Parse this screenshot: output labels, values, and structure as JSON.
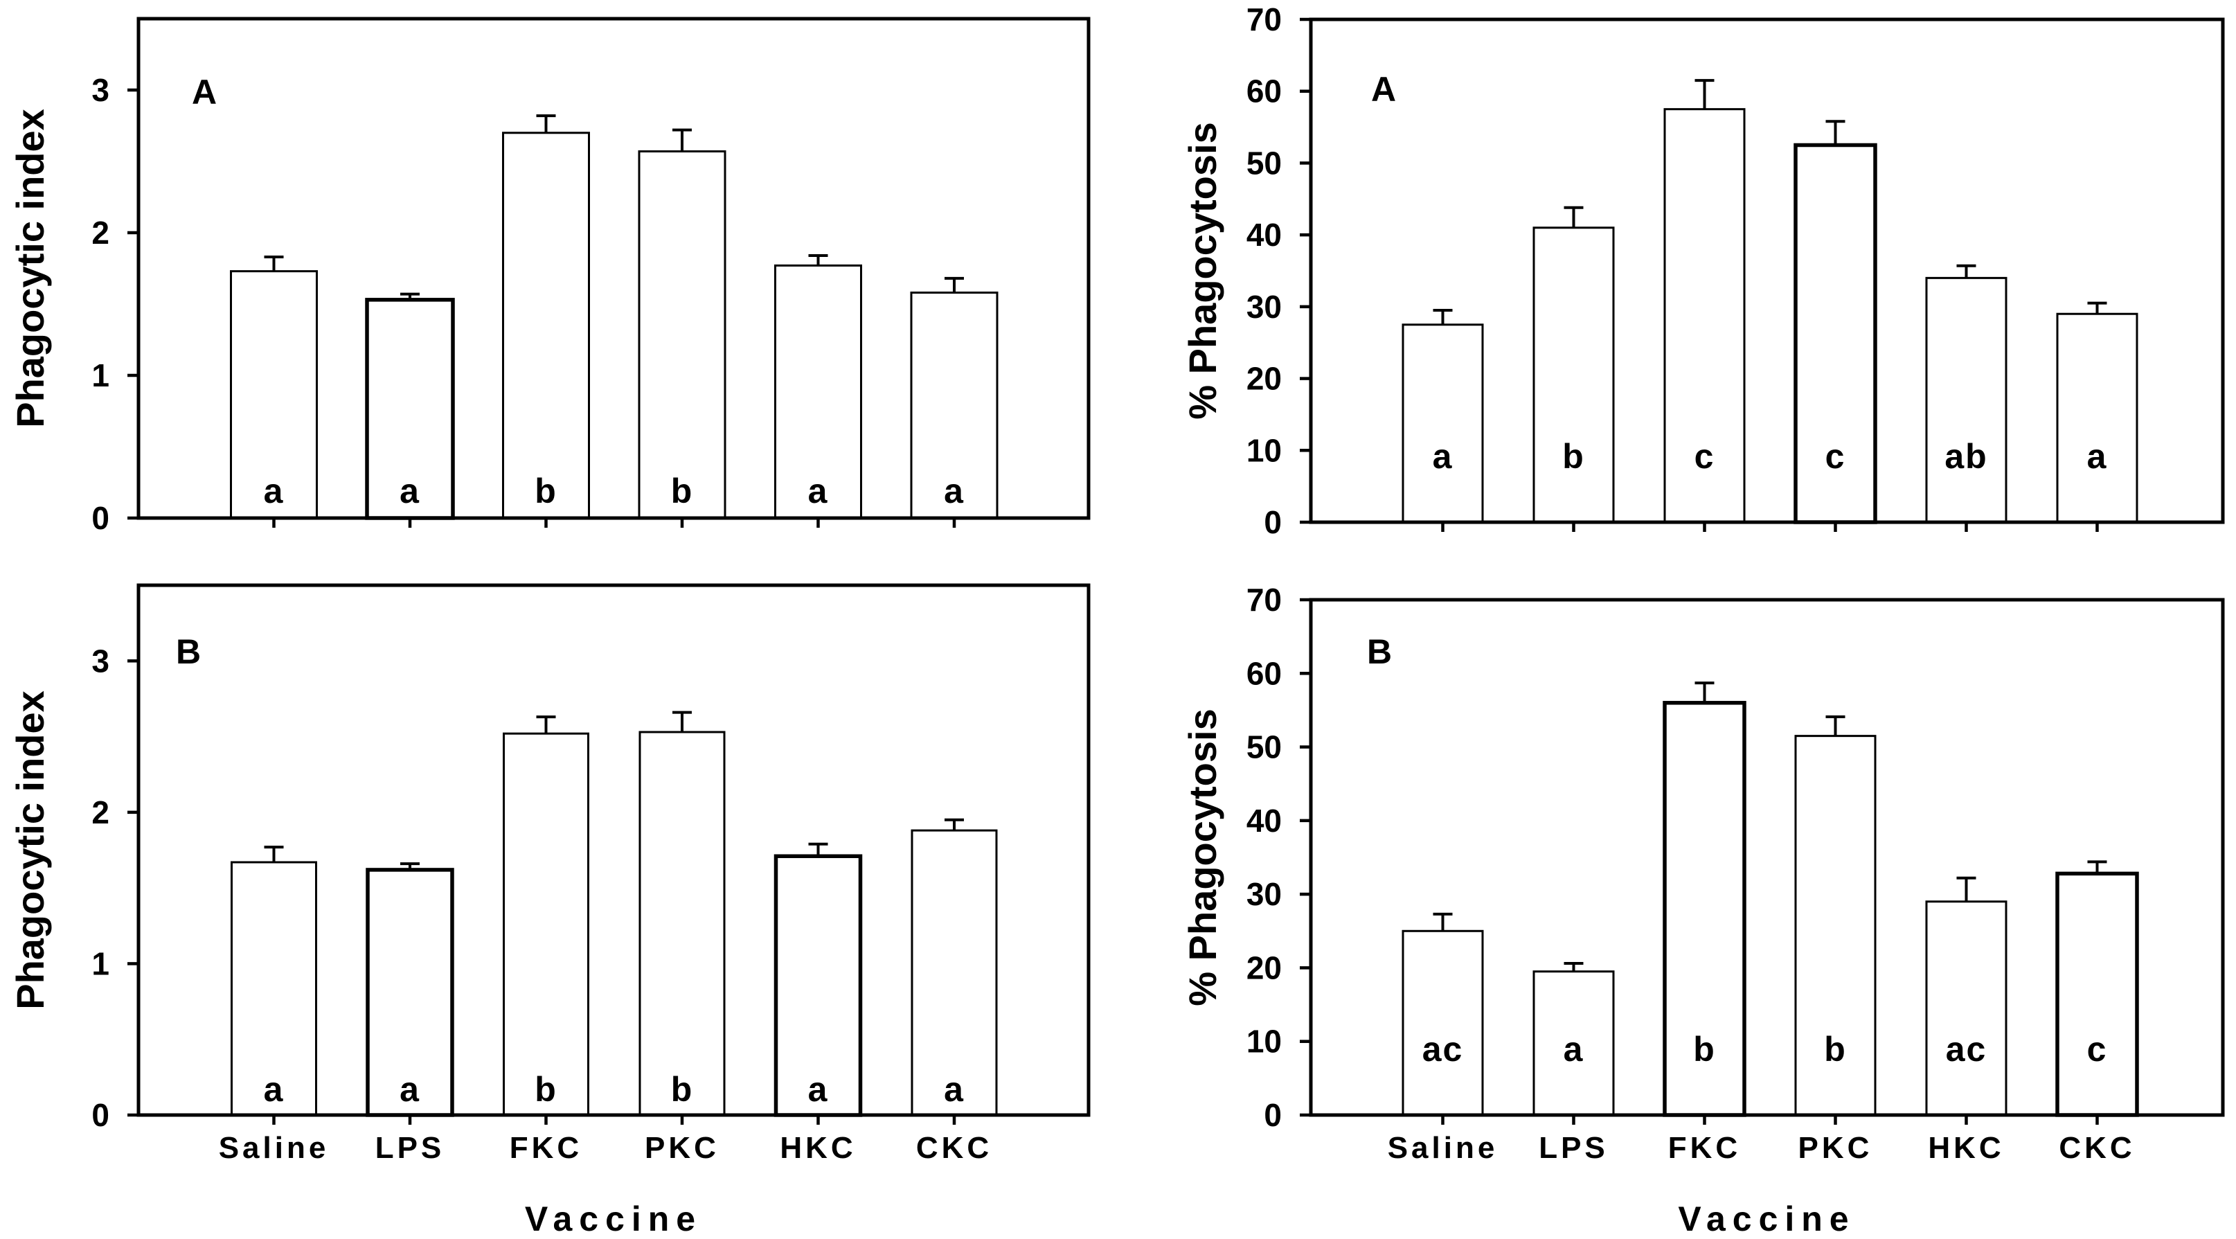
{
  "background_color": "#ffffff",
  "ink_color": "#000000",
  "xlabel": "Vaccine",
  "groups": [
    "Saline",
    "LPS",
    "FKC",
    "PKC",
    "HKC",
    "CKC"
  ],
  "chart_data": [
    {
      "id": "panel-top-left",
      "type": "bar",
      "panel_label": "A",
      "ylabel": "Phagocytic index",
      "xlabel": "Vaccine",
      "ylim": [
        0,
        3.5
      ],
      "yticks": [
        0,
        1,
        2,
        3
      ],
      "categories": [
        "Saline",
        "LPS",
        "FKC",
        "PKC",
        "HKC",
        "CKC"
      ],
      "values": [
        1.73,
        1.53,
        2.7,
        2.57,
        1.77,
        1.58
      ],
      "errors": [
        0.1,
        0.04,
        0.12,
        0.15,
        0.07,
        0.1
      ],
      "error_bars": "upper only",
      "sig_letters": [
        "a",
        "a",
        "b",
        "b",
        "a",
        "a"
      ],
      "bold_outline_bars": [
        1
      ],
      "bar_fill": "#ffffff",
      "grid": false,
      "legend": null,
      "x_tick_labels_shown": false
    },
    {
      "id": "panel-top-right",
      "type": "bar",
      "panel_label": "A",
      "ylabel": "% Phagocytosis",
      "xlabel": "Vaccine",
      "ylim": [
        0,
        70
      ],
      "yticks": [
        0,
        10,
        20,
        30,
        40,
        50,
        60,
        70
      ],
      "categories": [
        "Saline",
        "LPS",
        "FKC",
        "PKC",
        "HKC",
        "CKC"
      ],
      "values": [
        27.5,
        41,
        57.5,
        52.5,
        34,
        29
      ],
      "errors": [
        2.0,
        2.8,
        4.0,
        3.3,
        1.7,
        1.5
      ],
      "error_bars": "upper only",
      "sig_letters": [
        "a",
        "b",
        "c",
        "c",
        "ab",
        "a"
      ],
      "bold_outline_bars": [
        3
      ],
      "bar_fill": "#ffffff",
      "grid": false,
      "legend": null,
      "x_tick_labels_shown": false
    },
    {
      "id": "panel-bottom-left",
      "type": "bar",
      "panel_label": "B",
      "ylabel": "Phagocytic index",
      "xlabel": "Vaccine",
      "ylim": [
        0,
        3.5
      ],
      "yticks": [
        0,
        1,
        2,
        3
      ],
      "categories": [
        "Saline",
        "LPS",
        "FKC",
        "PKC",
        "HKC",
        "CKC"
      ],
      "values": [
        1.67,
        1.62,
        2.52,
        2.53,
        1.71,
        1.88
      ],
      "errors": [
        0.1,
        0.04,
        0.11,
        0.13,
        0.08,
        0.07
      ],
      "error_bars": "upper only",
      "sig_letters": [
        "a",
        "a",
        "b",
        "b",
        "a",
        "a"
      ],
      "bold_outline_bars": [
        1,
        4
      ],
      "bar_fill": "#ffffff",
      "grid": false,
      "legend": null,
      "x_tick_labels_shown": true
    },
    {
      "id": "panel-bottom-right",
      "type": "bar",
      "panel_label": "B",
      "ylabel": "% Phagocytosis",
      "xlabel": "Vaccine",
      "ylim": [
        0,
        70
      ],
      "yticks": [
        0,
        10,
        20,
        30,
        40,
        50,
        60,
        70
      ],
      "categories": [
        "Saline",
        "LPS",
        "FKC",
        "PKC",
        "HKC",
        "CKC"
      ],
      "values": [
        25,
        19.5,
        56,
        51.5,
        29,
        32.8
      ],
      "errors": [
        2.3,
        1.1,
        2.7,
        2.6,
        3.2,
        1.6
      ],
      "error_bars": "upper only",
      "sig_letters": [
        "ac",
        "a",
        "b",
        "b",
        "ac",
        "c"
      ],
      "bold_outline_bars": [
        2,
        5
      ],
      "bar_fill": "#ffffff",
      "grid": false,
      "legend": null,
      "x_tick_labels_shown": true
    }
  ]
}
